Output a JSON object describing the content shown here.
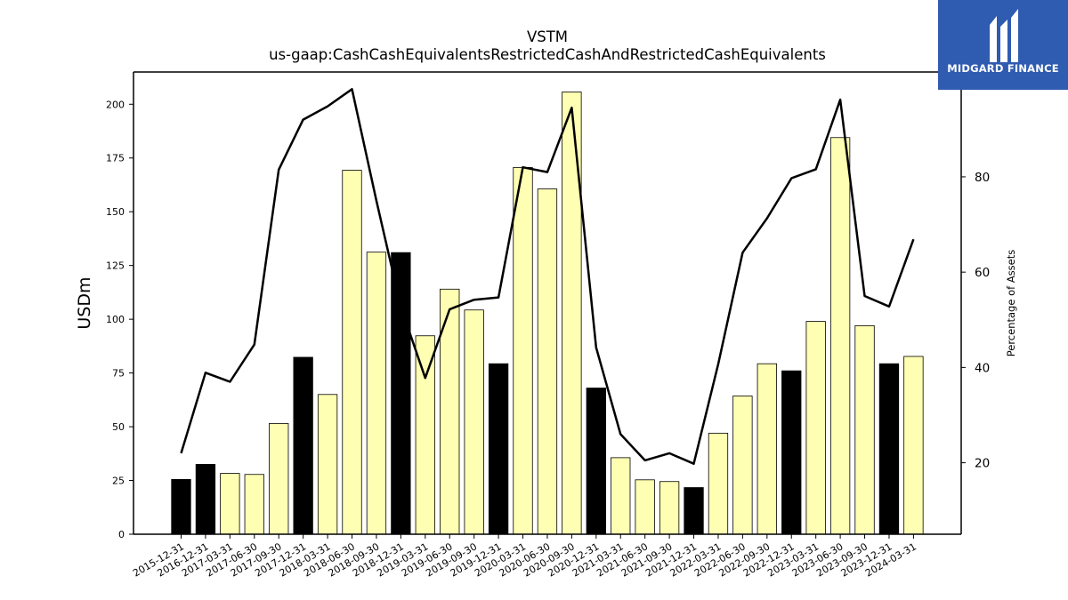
{
  "title": "VSTM",
  "subtitle": "us-gaap:CashCashEquivalentsRestrictedCashAndRestrictedCashEquivalents",
  "logo": {
    "text": "MIDGARD FINANCE",
    "bg_color": "#2f5bb0"
  },
  "colors": {
    "bar_default": "#ffffb3",
    "bar_highlight": "#000000",
    "line": "#000000"
  },
  "chart_data": {
    "type": "bar",
    "title": "VSTM",
    "subtitle": "us-gaap:CashCashEquivalentsRestrictedCashAndRestrictedCashEquivalents",
    "ylabel": "USDm",
    "y2label": "Percentage of Assets",
    "ylim": [
      0,
      215
    ],
    "y_ticks": [
      0,
      25,
      50,
      75,
      100,
      125,
      150,
      175,
      200
    ],
    "y2lim": [
      5,
      102
    ],
    "y2_ticks": [
      20,
      40,
      60,
      80
    ],
    "categories": [
      "2015-12-31",
      "2016-12-31",
      "2017-03-31",
      "2017-06-30",
      "2017-09-30",
      "2017-12-31",
      "2018-03-31",
      "2018-06-30",
      "2018-09-30",
      "2018-12-31",
      "2019-03-31",
      "2019-06-30",
      "2019-09-30",
      "2019-12-31",
      "2020-03-31",
      "2020-06-30",
      "2020-09-30",
      "2020-12-31",
      "2021-03-31",
      "2021-06-30",
      "2021-09-30",
      "2021-12-31",
      "2022-03-31",
      "2022-06-30",
      "2022-09-30",
      "2022-12-31",
      "2023-03-31",
      "2023-06-30",
      "2023-09-30",
      "2023-12-31",
      "2024-03-31"
    ],
    "series": [
      {
        "type": "bar",
        "axis": "left",
        "values": [
          25.5,
          32.5,
          28.3,
          27.8,
          51.5,
          82.3,
          65.0,
          169.3,
          131.2,
          131.0,
          92.3,
          114.0,
          104.3,
          79.3,
          170.6,
          160.6,
          205.7,
          68.0,
          35.6,
          25.3,
          24.5,
          21.7,
          47.0,
          64.3,
          79.3,
          76.0,
          99.0,
          184.5,
          97.0,
          79.3,
          82.7
        ],
        "highlight": [
          true,
          true,
          false,
          false,
          false,
          true,
          false,
          false,
          false,
          true,
          false,
          false,
          false,
          true,
          false,
          false,
          false,
          true,
          false,
          false,
          false,
          true,
          false,
          false,
          false,
          true,
          false,
          false,
          false,
          true,
          false
        ]
      },
      {
        "type": "line",
        "axis": "right",
        "values": [
          22.0,
          38.9,
          37.0,
          44.8,
          81.5,
          92.0,
          94.8,
          98.4,
          75.0,
          52.7,
          37.8,
          52.2,
          54.2,
          54.7,
          82.0,
          81.0,
          94.5,
          44.2,
          26.0,
          20.5,
          22.0,
          19.8,
          40.7,
          64.1,
          71.3,
          79.7,
          81.6,
          96.2,
          55.0,
          52.8,
          66.9
        ]
      }
    ]
  }
}
